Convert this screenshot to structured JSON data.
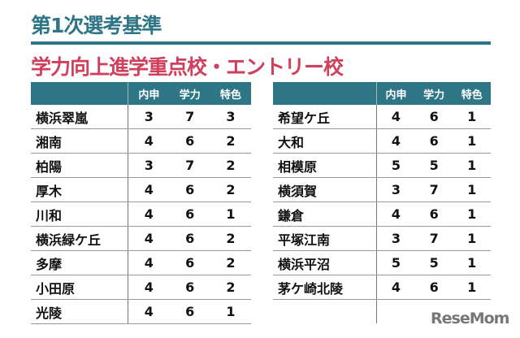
{
  "title": "第1次選考基準",
  "subtitle": "学力向上進学重点校・エントリー校",
  "headers": [
    "内申",
    "学力",
    "特色"
  ],
  "left_table": [
    {
      "name": "横浜翠嵐",
      "v": [
        3,
        7,
        3
      ]
    },
    {
      "name": "湘南",
      "v": [
        4,
        6,
        2
      ]
    },
    {
      "name": "柏陽",
      "v": [
        3,
        7,
        2
      ]
    },
    {
      "name": "厚木",
      "v": [
        4,
        6,
        2
      ]
    },
    {
      "name": "川和",
      "v": [
        4,
        6,
        1
      ]
    },
    {
      "name": "横浜緑ケ丘",
      "v": [
        4,
        6,
        2
      ]
    },
    {
      "name": "多摩",
      "v": [
        4,
        6,
        2
      ]
    },
    {
      "name": "小田原",
      "v": [
        4,
        6,
        2
      ]
    },
    {
      "name": "光陵",
      "v": [
        4,
        6,
        1
      ]
    }
  ],
  "right_table": [
    {
      "name": "希望ケ丘",
      "v": [
        4,
        6,
        1
      ]
    },
    {
      "name": "大和",
      "v": [
        4,
        6,
        1
      ]
    },
    {
      "name": "相模原",
      "v": [
        5,
        5,
        1
      ]
    },
    {
      "name": "横須賀",
      "v": [
        3,
        7,
        1
      ]
    },
    {
      "name": "鎌倉",
      "v": [
        4,
        6,
        1
      ]
    },
    {
      "name": "平塚江南",
      "v": [
        3,
        7,
        1
      ]
    },
    {
      "name": "横浜平沼",
      "v": [
        5,
        5,
        1
      ]
    },
    {
      "name": "茅ケ崎北陵",
      "v": [
        4,
        6,
        1
      ]
    }
  ],
  "logo": "ReseMom"
}
